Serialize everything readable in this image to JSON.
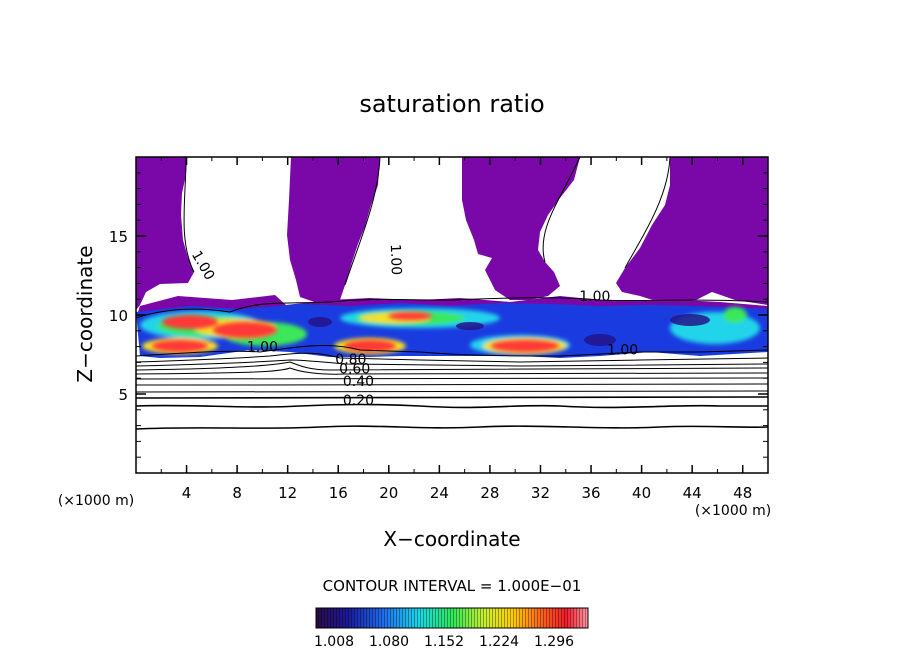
{
  "chart_data": {
    "type": "heatmap",
    "title": "saturation ratio",
    "xlabel": "X−coordinate",
    "ylabel": "Z−coordinate",
    "x_unit_left": "(×1000 m)",
    "x_unit_right": "(×1000 m)",
    "xlim": [
      0,
      50
    ],
    "ylim": [
      0,
      20
    ],
    "xticks": [
      4,
      8,
      12,
      16,
      20,
      24,
      28,
      32,
      36,
      40,
      44,
      48
    ],
    "yticks": [
      5,
      10,
      15
    ],
    "contour_interval_label": "CONTOUR INTERVAL = 1.000E−01",
    "contour_labels": [
      {
        "text": "1.00",
        "x": 5.0,
        "z": 13.0
      },
      {
        "text": "1.00",
        "x": 20.2,
        "z": 13.5
      },
      {
        "text": "1.00",
        "x": 36.3,
        "z": 10.9
      },
      {
        "text": "1.00",
        "x": 10.0,
        "z": 7.7
      },
      {
        "text": "1.00",
        "x": 38.5,
        "z": 7.5
      },
      {
        "text": "0.80",
        "x": 17.0,
        "z": 6.9
      },
      {
        "text": "0.60",
        "x": 17.3,
        "z": 6.3
      },
      {
        "text": "0.40",
        "x": 17.6,
        "z": 5.5
      },
      {
        "text": "0.20",
        "x": 17.6,
        "z": 4.3
      }
    ],
    "colorbar": {
      "ticks": [
        "1.008",
        "1.080",
        "1.152",
        "1.224",
        "1.296"
      ],
      "colors": [
        "#2b0b47",
        "#1a1a9c",
        "#1f6ff0",
        "#19d8e6",
        "#2ee85b",
        "#c8f030",
        "#ffd000",
        "#ff6a1a",
        "#f21b2b",
        "#ff9aa6"
      ]
    },
    "colors": {
      "below_one": "#7a07a8",
      "high_core": "#ff3838"
    }
  }
}
